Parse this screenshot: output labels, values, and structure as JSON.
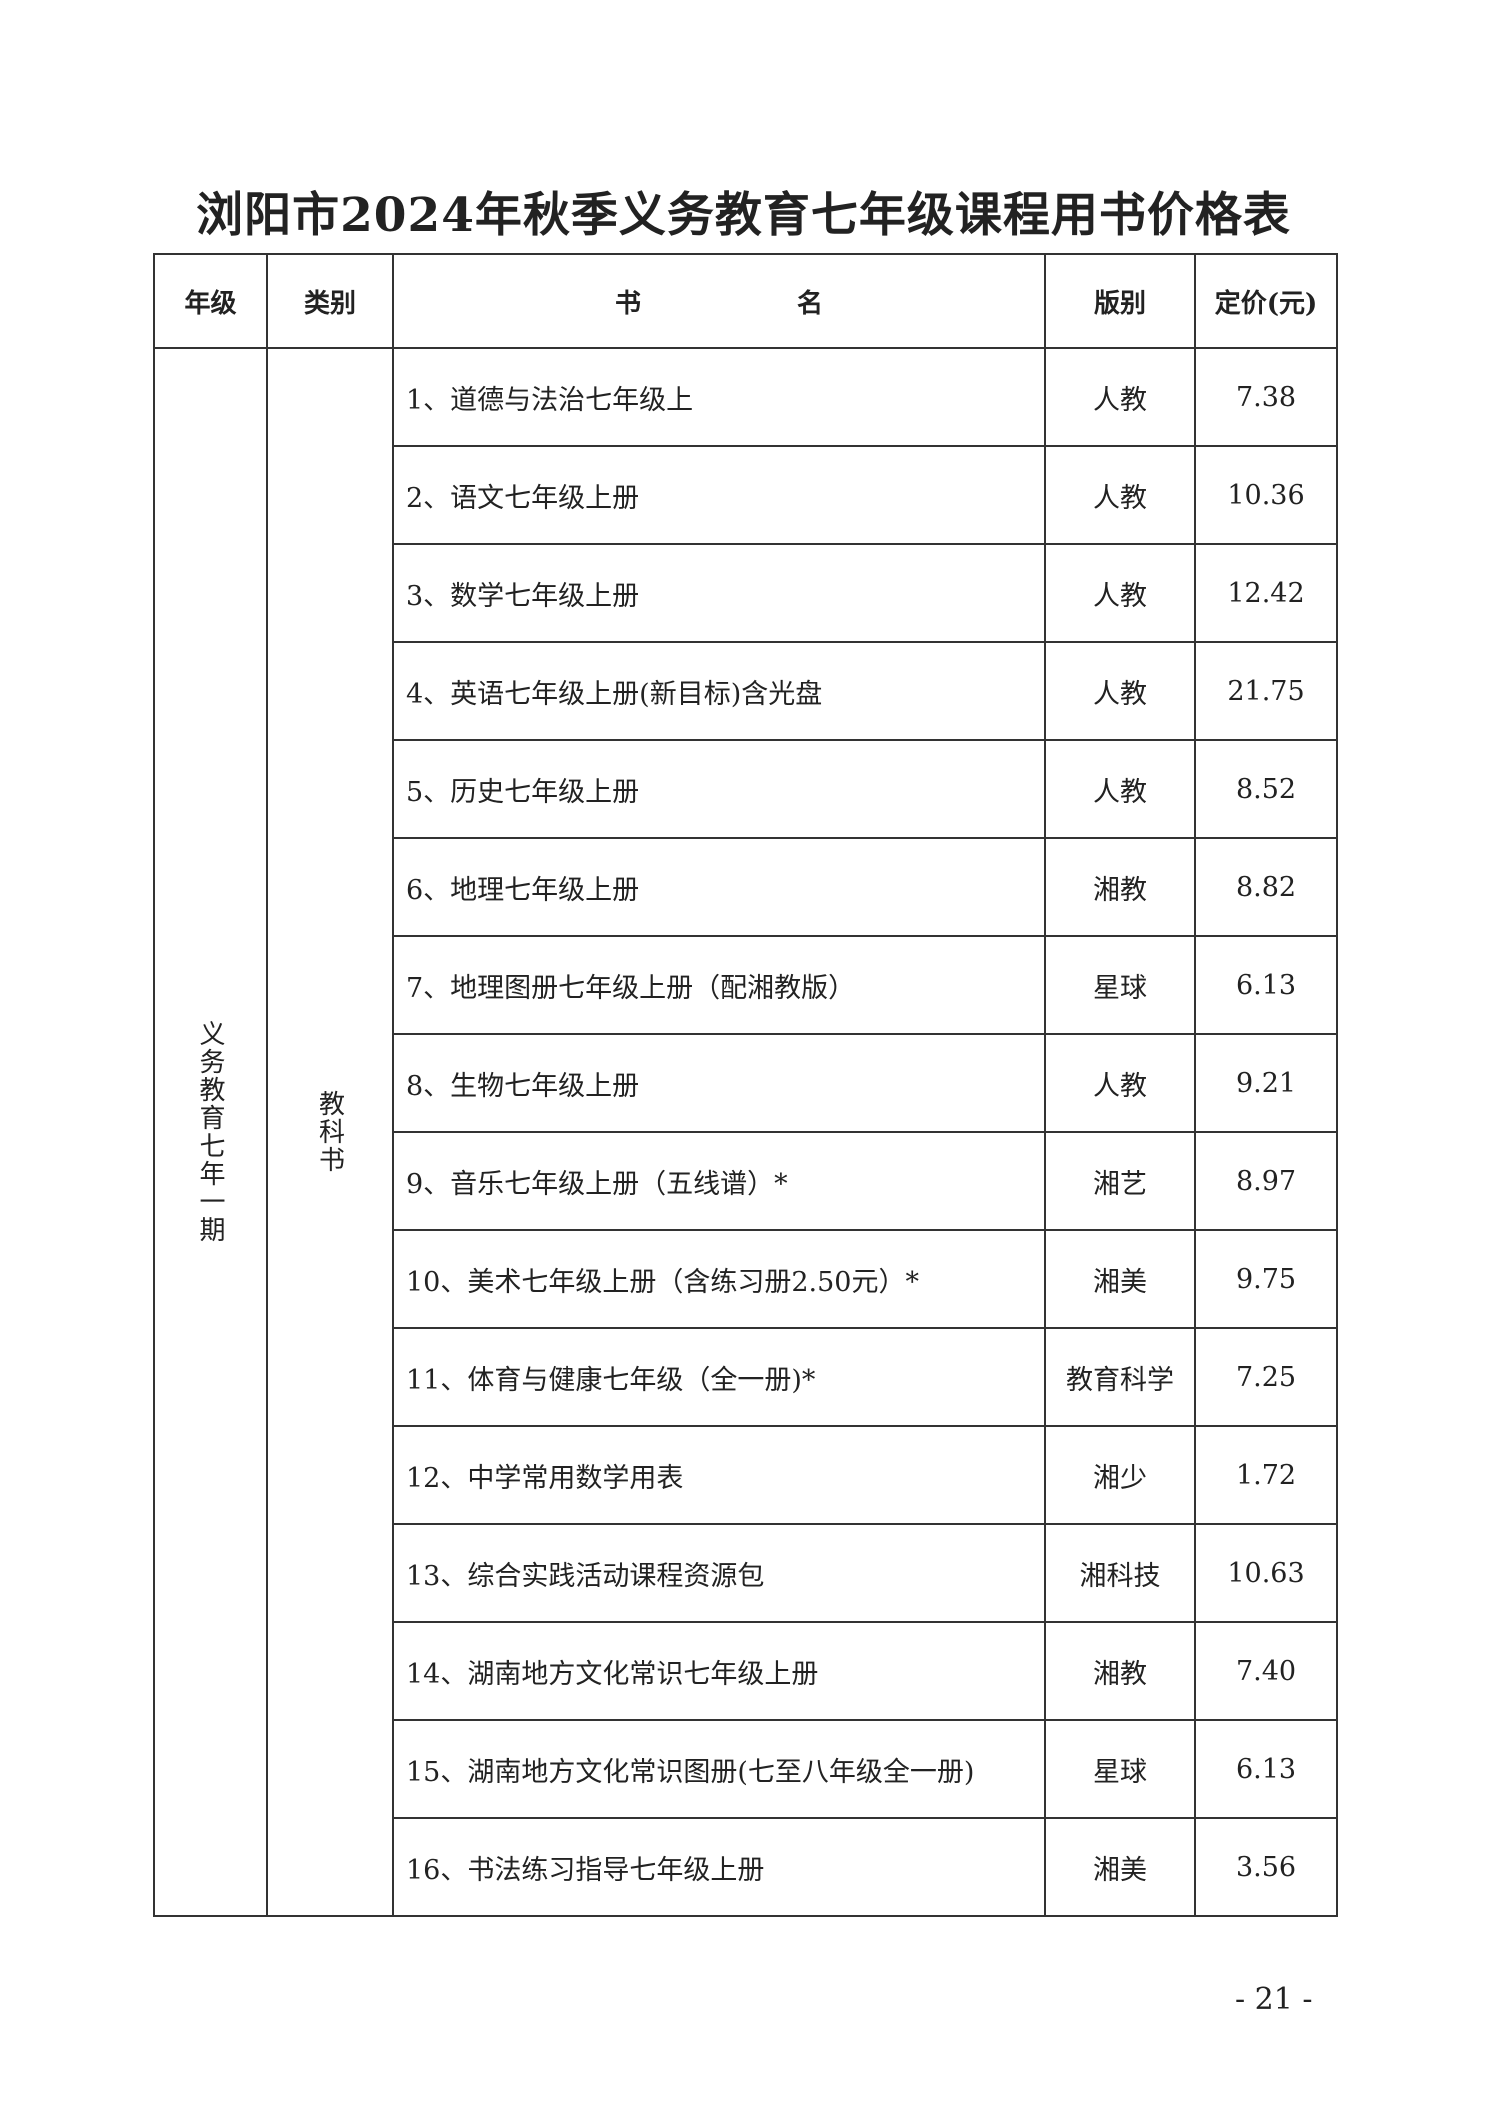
{
  "title": "浏阳市2024年秋季义务教育七年级课程用书价格表",
  "headers": {
    "grade": "年级",
    "category": "类别",
    "name": "书　　　　　　名",
    "edition": "版别",
    "price": "定价(元)"
  },
  "grade": "义务教育七年一期",
  "category": "教科书",
  "rows": [
    {
      "name": "1、道德与法治七年级上",
      "edition": "人教",
      "price": "7.38"
    },
    {
      "name": "2、语文七年级上册",
      "edition": "人教",
      "price": "10.36"
    },
    {
      "name": "3、数学七年级上册",
      "edition": "人教",
      "price": "12.42"
    },
    {
      "name": "4、英语七年级上册(新目标)含光盘",
      "edition": "人教",
      "price": "21.75"
    },
    {
      "name": "5、历史七年级上册",
      "edition": "人教",
      "price": "8.52"
    },
    {
      "name": "6、地理七年级上册",
      "edition": "湘教",
      "price": "8.82"
    },
    {
      "name": "7、地理图册七年级上册（配湘教版）",
      "edition": "星球",
      "price": "6.13"
    },
    {
      "name": "8、生物七年级上册",
      "edition": "人教",
      "price": "9.21"
    },
    {
      "name": "9、音乐七年级上册（五线谱）*",
      "edition": "湘艺",
      "price": "8.97"
    },
    {
      "name": "10、美术七年级上册（含练习册2.50元）*",
      "edition": "湘美",
      "price": "9.75"
    },
    {
      "name": "11、体育与健康七年级（全一册)*",
      "edition": "教育科学",
      "price": "7.25"
    },
    {
      "name": "12、中学常用数学用表",
      "edition": "湘少",
      "price": "1.72"
    },
    {
      "name": "13、综合实践活动课程资源包",
      "edition": "湘科技",
      "price": "10.63"
    },
    {
      "name": "14、湖南地方文化常识七年级上册",
      "edition": "湘教",
      "price": "7.40"
    },
    {
      "name": "15、湖南地方文化常识图册(七至八年级全一册)",
      "edition": "星球",
      "price": "6.13"
    },
    {
      "name": "16、书法练习指导七年级上册",
      "edition": "湘美",
      "price": "3.56"
    }
  ],
  "page_number": "- 21 -"
}
